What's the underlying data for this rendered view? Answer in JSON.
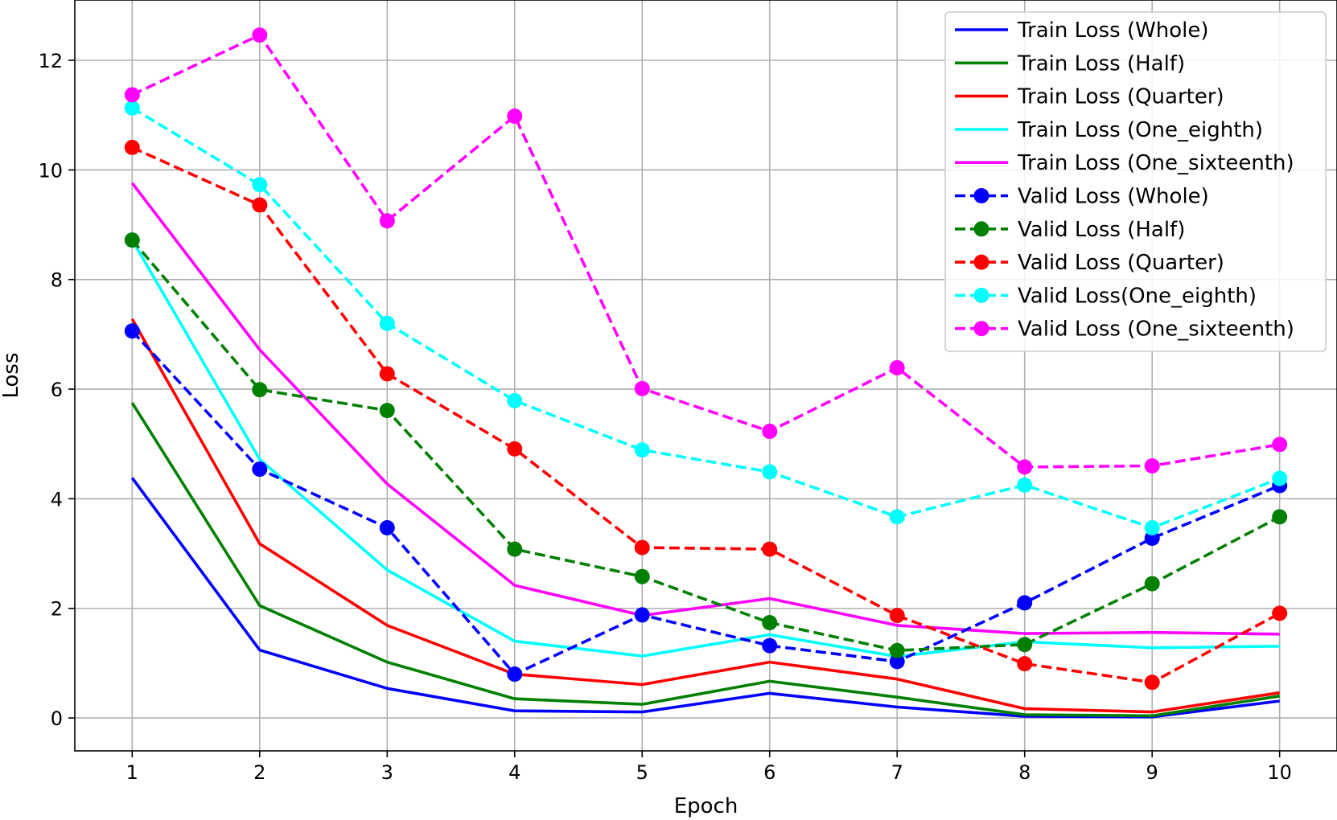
{
  "chart_data": {
    "type": "line",
    "title": "",
    "xlabel": "Epoch",
    "ylabel": "Loss",
    "x": [
      1,
      2,
      3,
      4,
      5,
      6,
      7,
      8,
      9,
      10
    ],
    "xlim": [
      0.55,
      10.45
    ],
    "ylim": [
      -0.6,
      13.1
    ],
    "xticks": [
      1,
      2,
      3,
      4,
      5,
      6,
      7,
      8,
      9,
      10
    ],
    "yticks": [
      0,
      2,
      4,
      6,
      8,
      10,
      12
    ],
    "grid": true,
    "legend_position": "top-right",
    "series": [
      {
        "name": "Train Loss (Whole)",
        "color": "#0000ff",
        "style": "solid",
        "marker": "none",
        "values": [
          4.38,
          1.24,
          0.54,
          0.13,
          0.11,
          0.45,
          0.2,
          0.03,
          0.02,
          0.31
        ]
      },
      {
        "name": "Train Loss (Half)",
        "color": "#008000",
        "style": "solid",
        "marker": "none",
        "values": [
          5.75,
          2.05,
          1.02,
          0.35,
          0.25,
          0.67,
          0.38,
          0.06,
          0.04,
          0.4
        ]
      },
      {
        "name": "Train Loss (Quarter)",
        "color": "#ff0000",
        "style": "solid",
        "marker": "none",
        "values": [
          7.28,
          3.18,
          1.69,
          0.8,
          0.61,
          1.02,
          0.71,
          0.17,
          0.11,
          0.46
        ]
      },
      {
        "name": "Train Loss (One_eighth)",
        "color": "#00ffff",
        "style": "solid",
        "marker": "none",
        "values": [
          8.72,
          4.72,
          2.7,
          1.4,
          1.13,
          1.52,
          1.12,
          1.39,
          1.28,
          1.31
        ]
      },
      {
        "name": "Train Loss (One_sixteenth)",
        "color": "#ff00ff",
        "style": "solid",
        "marker": "none",
        "values": [
          9.76,
          6.72,
          4.27,
          2.42,
          1.87,
          2.18,
          1.69,
          1.54,
          1.56,
          1.53
        ]
      },
      {
        "name": "Valid Loss (Whole)",
        "color": "#0000ff",
        "style": "dashed",
        "marker": "circle",
        "values": [
          7.06,
          4.54,
          3.47,
          0.8,
          1.88,
          1.32,
          1.03,
          2.1,
          3.28,
          4.24
        ]
      },
      {
        "name": "Valid Loss (Half)",
        "color": "#008000",
        "style": "dashed",
        "marker": "circle",
        "values": [
          8.72,
          5.99,
          5.61,
          3.08,
          2.58,
          1.74,
          1.23,
          1.34,
          2.45,
          3.67
        ]
      },
      {
        "name": "Valid Loss (Quarter)",
        "color": "#ff0000",
        "style": "dashed",
        "marker": "circle",
        "values": [
          10.41,
          9.36,
          6.28,
          4.91,
          3.11,
          3.08,
          1.87,
          0.99,
          0.65,
          1.91
        ]
      },
      {
        "name": "Valid Loss(One_eighth)",
        "color": "#00ffff",
        "style": "dashed",
        "marker": "circle",
        "values": [
          11.13,
          9.73,
          7.2,
          5.79,
          4.89,
          4.49,
          3.67,
          4.25,
          3.47,
          4.37
        ]
      },
      {
        "name": "Valid Loss (One_sixteenth)",
        "color": "#ff00ff",
        "style": "dashed",
        "marker": "circle",
        "values": [
          11.37,
          12.46,
          9.07,
          10.98,
          6.01,
          5.23,
          6.39,
          4.58,
          4.6,
          4.99
        ]
      }
    ]
  }
}
